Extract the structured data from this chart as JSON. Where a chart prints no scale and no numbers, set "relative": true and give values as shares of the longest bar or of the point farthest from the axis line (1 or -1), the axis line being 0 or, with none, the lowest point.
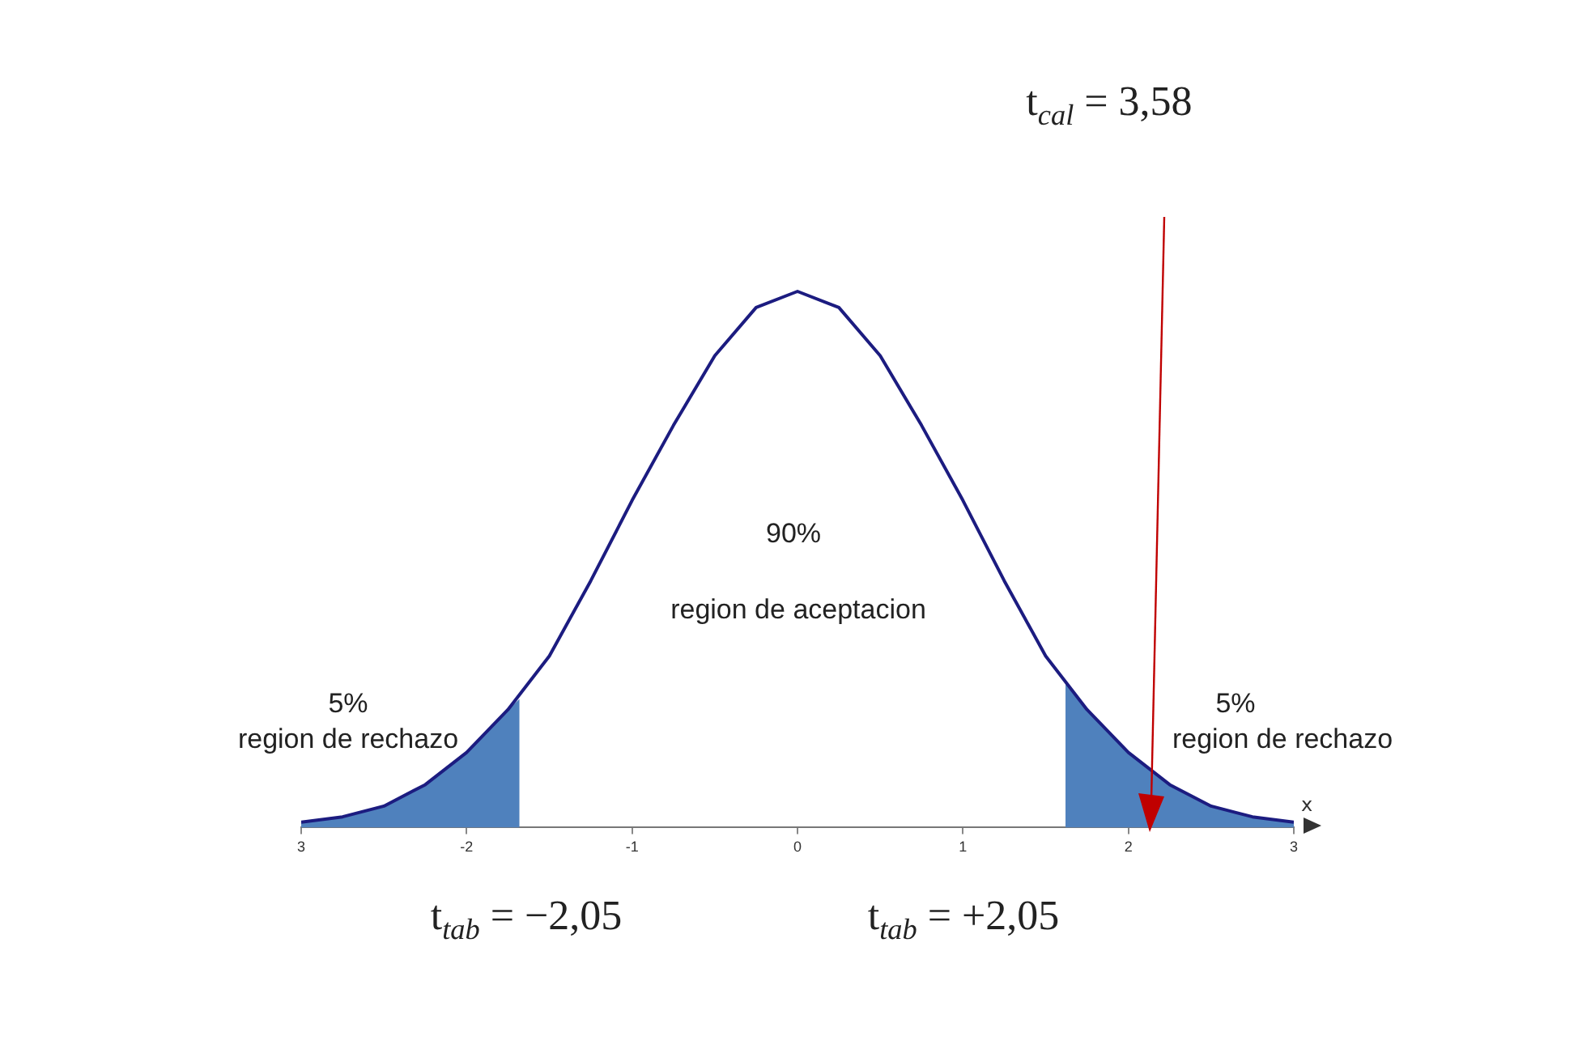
{
  "chart_data": {
    "type": "line",
    "relative": true,
    "xlabel": "x",
    "xlim": [
      -3,
      3
    ],
    "xticks": [
      {
        "value": -3,
        "label": "3"
      },
      -2,
      -1,
      0,
      1,
      2,
      3
    ],
    "series": [
      {
        "type": "line",
        "color": "#1c1c80",
        "x": [
          -3,
          -2.75,
          -2.5,
          -2.25,
          -2,
          -1.75,
          -1.5,
          -1.25,
          -1,
          -0.75,
          -0.5,
          -0.25,
          0,
          0.25,
          0.5,
          0.75,
          1,
          1.25,
          1.5,
          1.75,
          2,
          2.25,
          2.5,
          2.75,
          3
        ],
        "values": [
          0.01,
          0.02,
          0.04,
          0.08,
          0.14,
          0.22,
          0.32,
          0.46,
          0.61,
          0.75,
          0.88,
          0.97,
          1,
          0.97,
          0.88,
          0.75,
          0.61,
          0.46,
          0.32,
          0.22,
          0.14,
          0.08,
          0.04,
          0.02,
          0.01
        ]
      },
      {
        "type": "area",
        "color": "#4f81bd",
        "x": [
          -3,
          -2.75,
          -2.5,
          -2.25,
          -2,
          -1.75,
          -1.68
        ],
        "values": [
          0.01,
          0.02,
          0.04,
          0.08,
          0.14,
          0.22,
          0.24
        ]
      },
      {
        "type": "area",
        "color": "#4f81bd",
        "x": [
          1.62,
          1.75,
          2,
          2.25,
          2.5,
          2.75,
          3
        ],
        "values": [
          0.27,
          0.22,
          0.14,
          0.08,
          0.04,
          0.02,
          0.01
        ]
      }
    ],
    "annotations": [
      "90%",
      "region de aceptacion",
      "5%",
      "region de rechazo",
      "5%",
      "region de rechazo",
      "t$_{tab}$ = −2,05",
      "t$_{tab}$ = +2,05",
      "t$_{cal}$ = 3,58"
    ]
  }
}
